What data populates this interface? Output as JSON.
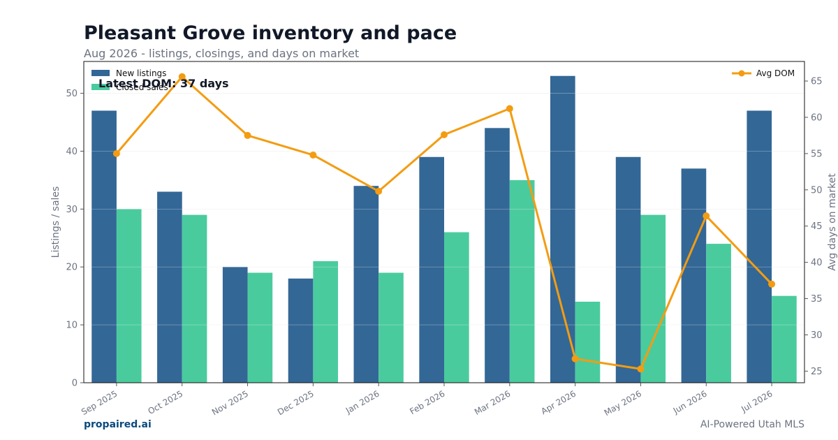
{
  "header": {
    "title": "Pleasant Grove inventory and pace",
    "subtitle": "Aug 2026 - listings, closings, and days on market"
  },
  "footer": {
    "brand": "propaired.ai",
    "tagline": "AI-Powered Utah MLS"
  },
  "annotation": "Latest DOM: 37 days",
  "colors": {
    "new_listings": "#336796",
    "closed_sales": "#4acb9e",
    "avg_dom": "#f39c12"
  },
  "chart_data": {
    "type": "bar",
    "categories": [
      "Sep 2025",
      "Oct 2025",
      "Nov 2025",
      "Dec 2025",
      "Jan 2026",
      "Feb 2026",
      "Mar 2026",
      "Apr 2026",
      "May 2026",
      "Jun 2026",
      "Jul 2026"
    ],
    "series": [
      {
        "name": "New listings",
        "type": "bar",
        "axis": "left",
        "values": [
          47,
          33,
          20,
          18,
          34,
          39,
          44,
          53,
          39,
          37,
          47
        ]
      },
      {
        "name": "Closed sales",
        "type": "bar",
        "axis": "left",
        "values": [
          30,
          29,
          19,
          21,
          19,
          26,
          35,
          14,
          29,
          24,
          15
        ]
      },
      {
        "name": "Avg DOM",
        "type": "line",
        "axis": "right",
        "values": [
          55,
          65.6,
          57.5,
          54.8,
          49.8,
          57.6,
          61.2,
          26.7,
          25.3,
          46.4,
          37
        ]
      }
    ],
    "ylabel": "Listings / sales",
    "y2label": "Avg days on market",
    "ylim": [
      0,
      55.5
    ],
    "y2lim": [
      23.4,
      67.7
    ],
    "yticks": [
      0,
      10,
      20,
      30,
      40,
      50
    ],
    "y2ticks": [
      25,
      30,
      35,
      40,
      45,
      50,
      55,
      60,
      65
    ],
    "grid": true,
    "legend_left": "top-left",
    "legend_right": "top-right"
  }
}
